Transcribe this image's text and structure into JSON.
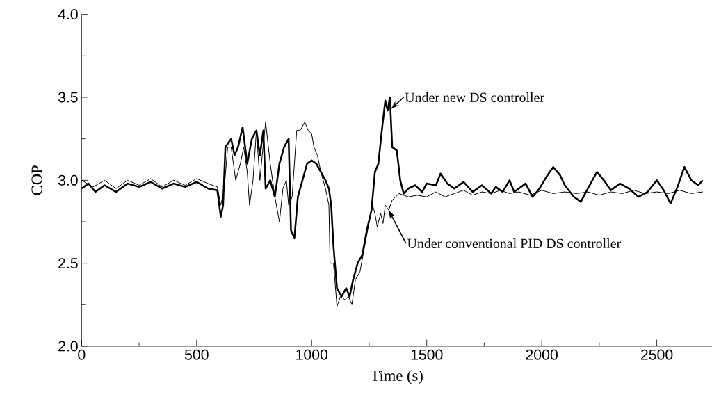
{
  "chart_data": {
    "type": "line",
    "xlabel": "Time (s)",
    "ylabel": "COP",
    "xlim": [
      0,
      2740
    ],
    "ylim": [
      2.0,
      4.0
    ],
    "xticks": [
      0,
      500,
      1000,
      1500,
      2000,
      2500
    ],
    "yticks": [
      {
        "value": 2.0,
        "label": "2.0"
      },
      {
        "value": 2.5,
        "label": "2.5"
      },
      {
        "value": 3.0,
        "label": "3.0"
      },
      {
        "value": 3.5,
        "label": "3.5"
      },
      {
        "value": 4.0,
        "label": "4.0"
      }
    ],
    "x": [
      0,
      30,
      60,
      100,
      150,
      200,
      250,
      300,
      350,
      400,
      450,
      500,
      550,
      590,
      605,
      615,
      625,
      650,
      665,
      680,
      700,
      720,
      740,
      760,
      775,
      790,
      800,
      820,
      840,
      860,
      880,
      900,
      910,
      925,
      940,
      960,
      980,
      1000,
      1020,
      1040,
      1060,
      1075,
      1085,
      1095,
      1110,
      1130,
      1150,
      1165,
      1180,
      1200,
      1220,
      1240,
      1260,
      1275,
      1290,
      1305,
      1320,
      1330,
      1340,
      1350,
      1370,
      1385,
      1400,
      1420,
      1450,
      1480,
      1500,
      1540,
      1560,
      1590,
      1620,
      1660,
      1700,
      1740,
      1780,
      1800,
      1830,
      1860,
      1880,
      1900,
      1930,
      1960,
      1990,
      2020,
      2050,
      2080,
      2100,
      2140,
      2170,
      2200,
      2240,
      2270,
      2300,
      2340,
      2380,
      2420,
      2460,
      2500,
      2530,
      2560,
      2590,
      2620,
      2650,
      2680,
      2700
    ],
    "series": [
      {
        "color": "#000000",
        "values": [
          2.95,
          2.98,
          2.93,
          2.97,
          2.93,
          2.98,
          2.96,
          2.99,
          2.95,
          2.98,
          2.96,
          2.99,
          2.95,
          2.94,
          2.78,
          2.85,
          3.2,
          3.25,
          3.15,
          3.2,
          3.32,
          3.1,
          3.25,
          3.3,
          3.15,
          3.3,
          2.95,
          3.0,
          2.9,
          3.1,
          3.2,
          3.25,
          2.7,
          2.65,
          2.9,
          3.0,
          3.1,
          3.12,
          3.1,
          3.05,
          3.0,
          2.95,
          2.85,
          2.6,
          2.35,
          2.3,
          2.35,
          2.3,
          2.4,
          2.5,
          2.55,
          2.7,
          2.82,
          3.05,
          3.1,
          3.3,
          3.48,
          3.42,
          3.5,
          3.2,
          3.18,
          3.0,
          2.92,
          2.95,
          2.97,
          2.93,
          2.98,
          2.97,
          3.04,
          2.98,
          2.95,
          2.99,
          2.93,
          2.97,
          2.92,
          2.96,
          2.93,
          3.0,
          2.93,
          2.95,
          2.98,
          2.9,
          2.95,
          3.02,
          3.08,
          3.03,
          2.97,
          2.9,
          2.87,
          2.95,
          3.05,
          3.0,
          2.94,
          2.98,
          2.95,
          2.9,
          2.93,
          3.0,
          2.94,
          2.86,
          2.96,
          3.08,
          3.0,
          2.97,
          3.0
        ]
      },
      {
        "color": "#000000",
        "x": [
          0,
          50,
          100,
          150,
          200,
          250,
          300,
          350,
          400,
          450,
          500,
          550,
          590,
          605,
          620,
          635,
          650,
          670,
          690,
          705,
          720,
          730,
          745,
          760,
          775,
          785,
          800,
          820,
          840,
          860,
          875,
          890,
          900,
          915,
          935,
          950,
          970,
          985,
          1000,
          1010,
          1025,
          1040,
          1060,
          1075,
          1080,
          1095,
          1110,
          1125,
          1145,
          1160,
          1175,
          1190,
          1210,
          1230,
          1250,
          1265,
          1275,
          1285,
          1300,
          1310,
          1320,
          1335,
          1350,
          1380,
          1420,
          1460,
          1500,
          1540,
          1580,
          1620,
          1660,
          1700,
          1740,
          1780,
          1820,
          1860,
          1900,
          1950,
          2000,
          2050,
          2100,
          2150,
          2200,
          2250,
          2300,
          2350,
          2400,
          2450,
          2500,
          2550,
          2600,
          2650,
          2700
        ],
        "values": [
          3.0,
          2.96,
          3.0,
          2.95,
          3.0,
          2.97,
          3.01,
          2.96,
          3.0,
          2.97,
          3.01,
          2.98,
          2.96,
          2.85,
          2.95,
          3.2,
          3.2,
          3.0,
          3.1,
          3.2,
          3.05,
          2.85,
          3.0,
          3.3,
          3.0,
          3.15,
          3.35,
          3.1,
          2.9,
          2.75,
          2.95,
          3.0,
          2.85,
          2.9,
          3.3,
          3.3,
          3.35,
          3.3,
          3.28,
          3.2,
          3.15,
          3.05,
          2.95,
          2.85,
          2.5,
          2.5,
          2.24,
          2.3,
          2.28,
          2.3,
          2.25,
          2.4,
          2.45,
          2.6,
          2.75,
          2.85,
          2.8,
          2.72,
          2.8,
          2.74,
          2.85,
          2.82,
          2.88,
          2.92,
          2.9,
          2.91,
          2.9,
          2.93,
          2.9,
          2.92,
          2.94,
          2.91,
          2.93,
          2.92,
          2.94,
          2.92,
          2.93,
          2.91,
          2.94,
          2.92,
          2.93,
          2.92,
          2.93,
          2.91,
          2.93,
          2.92,
          2.94,
          2.92,
          2.93,
          2.92,
          2.94,
          2.92,
          2.93
        ]
      }
    ],
    "annotations": [
      {
        "text": "Under new DS controller",
        "x": 1345,
        "y": 3.43
      },
      {
        "text": "Under conventional PID DS controller",
        "x": 1335,
        "y": 2.82
      }
    ]
  }
}
